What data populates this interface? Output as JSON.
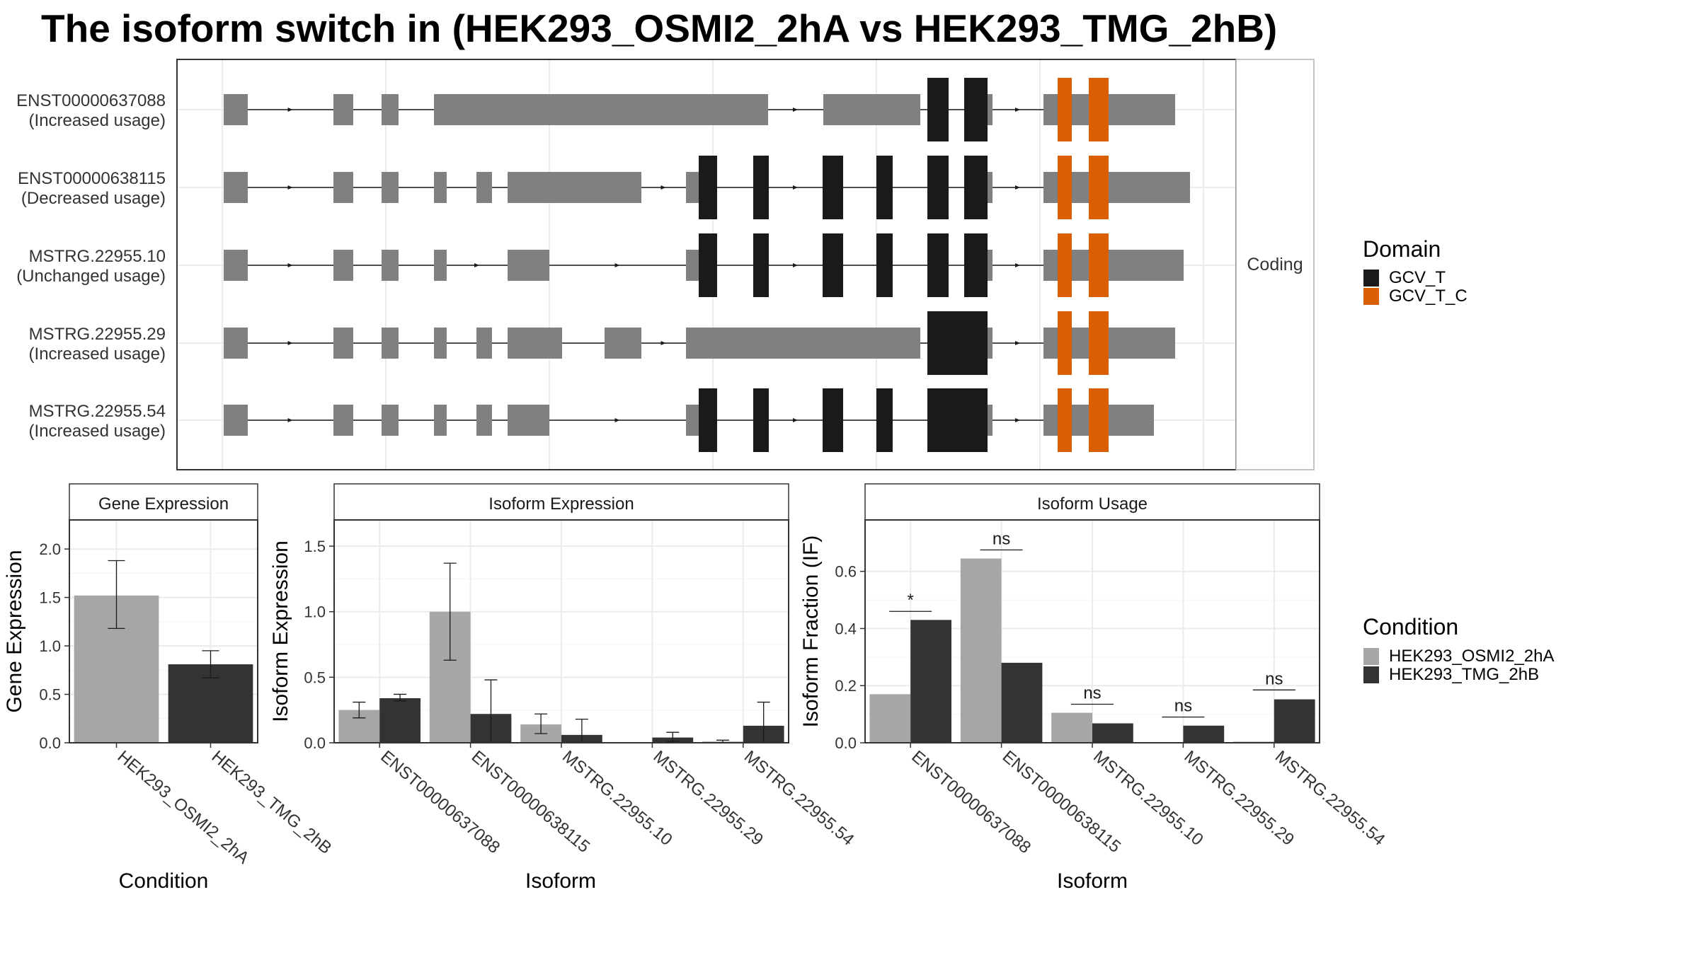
{
  "title": "The isoform switch in  (HEK293_OSMI2_2hA vs HEK293_TMG_2hB)",
  "colors": {
    "exon_noncoding": "#808080",
    "GCV_T": "#1a1a1a",
    "GCV_T_C": "#d95f02",
    "HEK293_OSMI2_2hA": "#a6a6a6",
    "HEK293_TMG_2hB": "#333333"
  },
  "transcript_panel": {
    "strip_label": "Coding",
    "transcripts": [
      {
        "id": "ENST00000637088",
        "status": "(Increased usage)"
      },
      {
        "id": "ENST00000638115",
        "status": "(Decreased usage)"
      },
      {
        "id": "MSTRG.22955.10",
        "status": "(Unchanged usage)"
      },
      {
        "id": "MSTRG.22955.29",
        "status": "(Increased usage)"
      },
      {
        "id": "MSTRG.22955.54",
        "status": "(Increased usage)"
      }
    ]
  },
  "domain_legend": {
    "title": "Domain",
    "items": [
      {
        "label": "GCV_T",
        "color": "#1a1a1a"
      },
      {
        "label": "GCV_T_C",
        "color": "#d95f02"
      }
    ]
  },
  "condition_legend": {
    "title": "Condition",
    "items": [
      {
        "label": "HEK293_OSMI2_2hA",
        "color": "#a6a6a6"
      },
      {
        "label": "HEK293_TMG_2hB",
        "color": "#333333"
      }
    ]
  },
  "chart_data": [
    {
      "type": "bar",
      "panel": "Gene Expression",
      "xlabel": "Condition",
      "ylabel": "Gene Expression",
      "categories": [
        "HEK293_OSMI2_2hA",
        "HEK293_TMG_2hB"
      ],
      "values": [
        1.52,
        0.81
      ],
      "error_low": [
        1.18,
        0.67
      ],
      "error_high": [
        1.88,
        0.95
      ],
      "ylim": [
        0,
        2.3
      ],
      "yticks": [
        "0.0",
        "0.5",
        "1.0",
        "1.5",
        "2.0"
      ],
      "grid": true
    },
    {
      "type": "bar",
      "panel": "Isoform Expression",
      "xlabel": "Isoform",
      "ylabel": "Isoform Expression",
      "categories": [
        "ENST00000637088",
        "ENST00000638115",
        "MSTRG.22955.10",
        "MSTRG.22955.29",
        "MSTRG.22955.54"
      ],
      "series": [
        {
          "name": "HEK293_OSMI2_2hA",
          "values": [
            0.25,
            1.0,
            0.14,
            0.0,
            0.01
          ],
          "error_low": [
            0.19,
            0.63,
            0.07,
            0.0,
            0.0
          ],
          "error_high": [
            0.31,
            1.37,
            0.22,
            0.0,
            0.02
          ]
        },
        {
          "name": "HEK293_TMG_2hB",
          "values": [
            0.34,
            0.22,
            0.06,
            0.04,
            0.13
          ],
          "error_low": [
            0.32,
            0.0,
            0.0,
            0.01,
            0.0
          ],
          "error_high": [
            0.37,
            0.48,
            0.18,
            0.08,
            0.31
          ]
        }
      ],
      "ylim": [
        0,
        1.7
      ],
      "yticks": [
        "0.0",
        "0.5",
        "1.0",
        "1.5"
      ],
      "grid": true
    },
    {
      "type": "bar",
      "panel": "Isoform Usage",
      "xlabel": "Isoform",
      "ylabel": "Isoform Fraction (IF)",
      "categories": [
        "ENST00000637088",
        "ENST00000638115",
        "MSTRG.22955.10",
        "MSTRG.22955.29",
        "MSTRG.22955.54"
      ],
      "series": [
        {
          "name": "HEK293_OSMI2_2hA",
          "values": [
            0.17,
            0.645,
            0.105,
            0.0,
            0.004
          ]
        },
        {
          "name": "HEK293_TMG_2hB",
          "values": [
            0.43,
            0.28,
            0.068,
            0.06,
            0.152
          ]
        }
      ],
      "significance": [
        "*",
        "ns",
        "ns",
        "ns",
        "ns"
      ],
      "sig_y": [
        0.46,
        0.675,
        0.135,
        0.09,
        0.185
      ],
      "ylim": [
        0,
        0.78
      ],
      "yticks": [
        "0.0",
        "0.2",
        "0.4",
        "0.6"
      ],
      "grid": true
    }
  ]
}
